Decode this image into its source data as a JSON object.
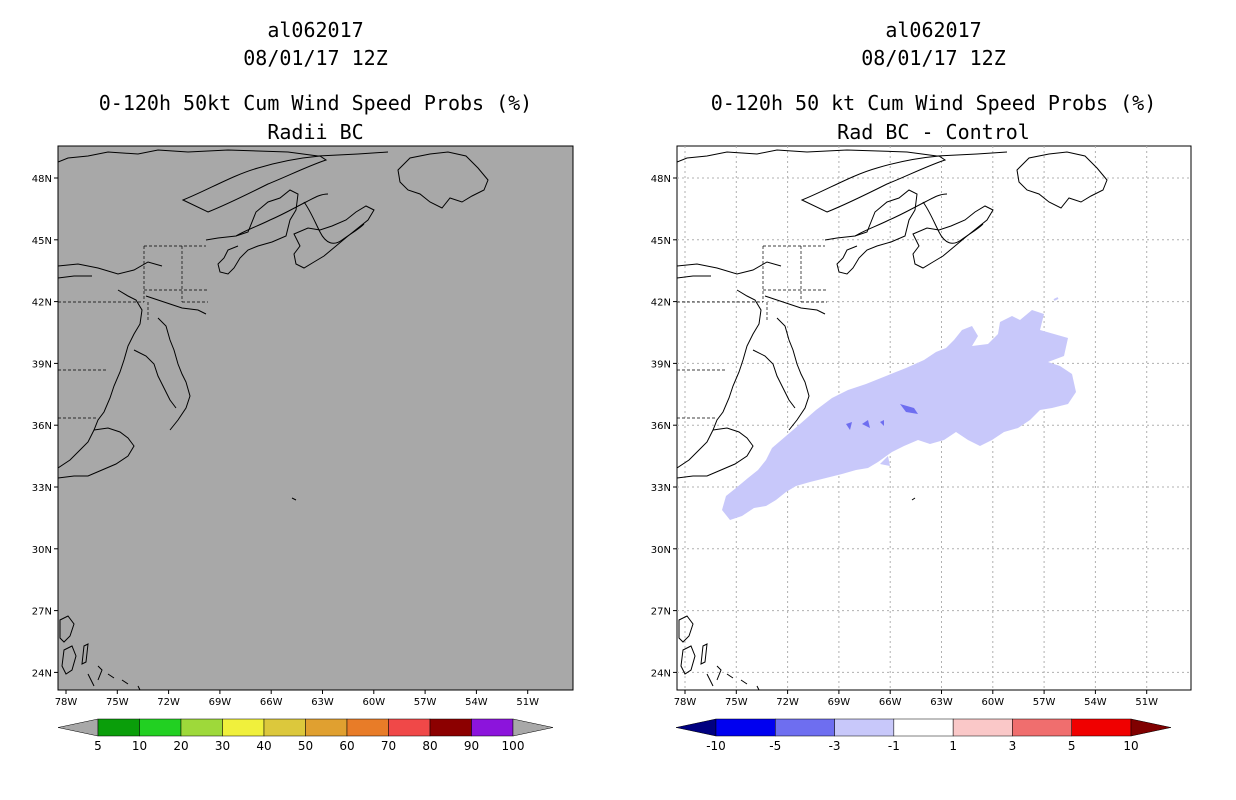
{
  "left_panel": {
    "storm_id": "al062017",
    "datetime": "08/01/17 12Z",
    "product": "0-120h 50kt Cum Wind Speed Probs (%)",
    "subtitle": "Radii BC",
    "background_color": "#a8a8a8",
    "lat_labels": [
      "48N",
      "45N",
      "42N",
      "39N",
      "36N",
      "33N",
      "30N",
      "27N",
      "24N"
    ],
    "lon_labels": [
      "78W",
      "75W",
      "72W",
      "69W",
      "66W",
      "63W",
      "60W",
      "57W",
      "54W",
      "51W"
    ],
    "colorbar": {
      "colors": [
        "#a8a8a8",
        "#0a9e0a",
        "#22d022",
        "#9ed93a",
        "#f0f03c",
        "#dcc83c",
        "#e0a030",
        "#e87c28",
        "#f04848",
        "#8c0000",
        "#8c14dc",
        "#a8a8a8"
      ],
      "labels": [
        "5",
        "10",
        "20",
        "30",
        "40",
        "50",
        "60",
        "70",
        "80",
        "90",
        "100"
      ]
    }
  },
  "right_panel": {
    "storm_id": "al062017",
    "datetime": "08/01/17 12Z",
    "product": "0-120h 50 kt Cum Wind Speed Probs (%)",
    "subtitle": "Rad BC - Control",
    "background_color": "#ffffff",
    "lat_labels": [
      "48N",
      "45N",
      "42N",
      "39N",
      "36N",
      "33N",
      "30N",
      "27N",
      "24N"
    ],
    "lon_labels": [
      "78W",
      "75W",
      "72W",
      "69W",
      "66W",
      "63W",
      "60W",
      "57W",
      "54W",
      "51W"
    ],
    "colorbar": {
      "colors": [
        "#000080",
        "#0000f0",
        "#6e6ef0",
        "#c8c8fa",
        "#ffffff",
        "#fac8c8",
        "#f06e6e",
        "#f00000",
        "#800000"
      ],
      "labels": [
        "-10",
        "-5",
        "-3",
        "-1",
        "1",
        "3",
        "5",
        "10"
      ]
    },
    "diff_fill_color": "#c8c8fa",
    "diff_spot_color": "#6e6ef0"
  }
}
